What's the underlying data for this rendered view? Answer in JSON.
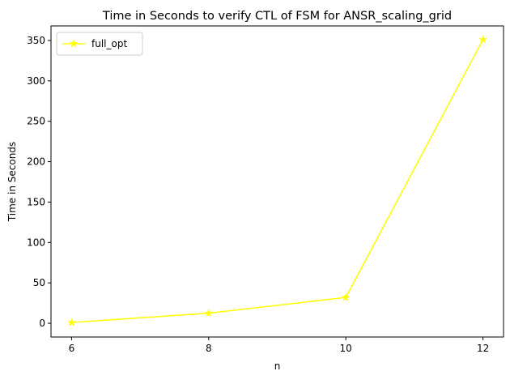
{
  "chart_data": {
    "type": "line",
    "title": "Time in Seconds to verify CTL of FSM for ANSR_scaling_grid",
    "xlabel": "n",
    "ylabel": "Time in Seconds",
    "x": [
      6,
      8,
      10,
      12
    ],
    "xticks": [
      "6",
      "8",
      "10",
      "12"
    ],
    "xlim": [
      5.7,
      12.3
    ],
    "yticks": [
      0,
      50,
      100,
      150,
      200,
      250,
      300,
      350
    ],
    "ylim": [
      -17,
      368
    ],
    "series": [
      {
        "name": "full_opt",
        "values": [
          1,
          12.5,
          32,
          351
        ],
        "color": "#ffff00",
        "marker": "star"
      }
    ],
    "grid": false,
    "legend_position": "top-left"
  }
}
